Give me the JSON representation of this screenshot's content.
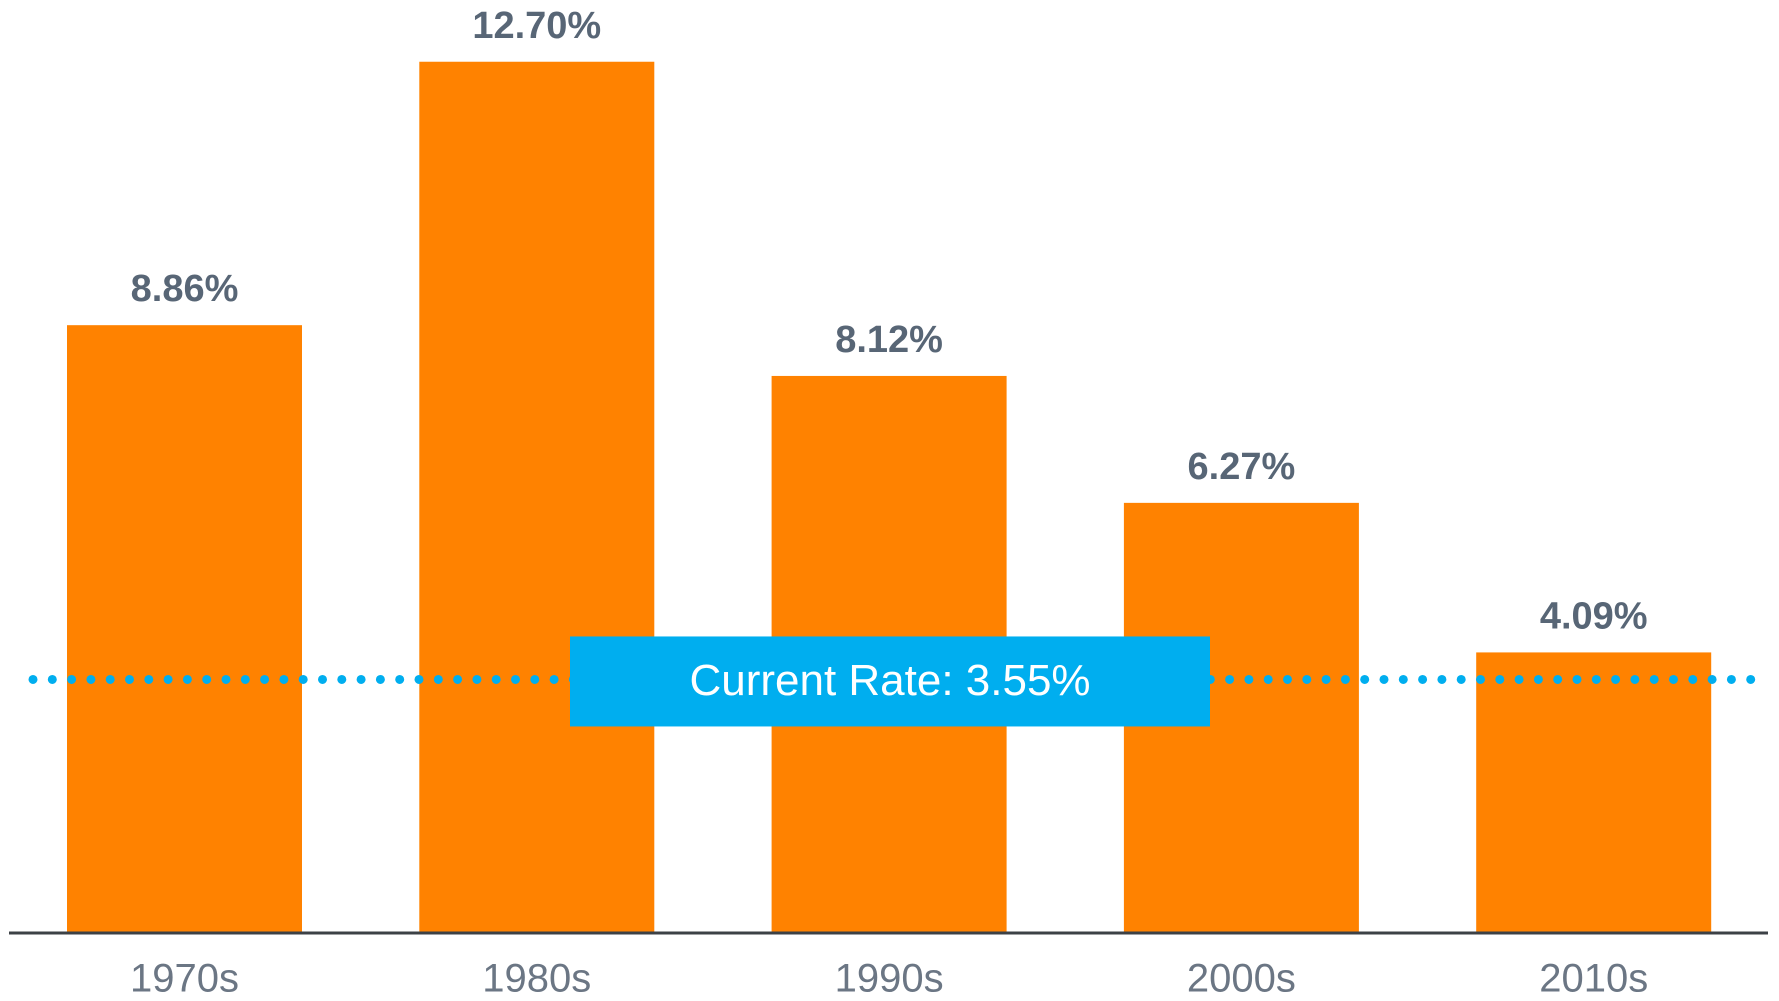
{
  "chart_data": {
    "type": "bar",
    "categories": [
      "1970s",
      "1980s",
      "1990s",
      "2000s",
      "2010s"
    ],
    "values": [
      8.86,
      12.7,
      8.12,
      6.27,
      4.09
    ],
    "value_labels": [
      "8.86%",
      "12.70%",
      "8.12%",
      "6.27%",
      "4.09%"
    ],
    "color": "#ff8200",
    "ylim": [
      0,
      13.6
    ],
    "reference_line": {
      "value": 3.55,
      "label": "Current Rate: 3.55%",
      "color": "#00aeef"
    }
  }
}
